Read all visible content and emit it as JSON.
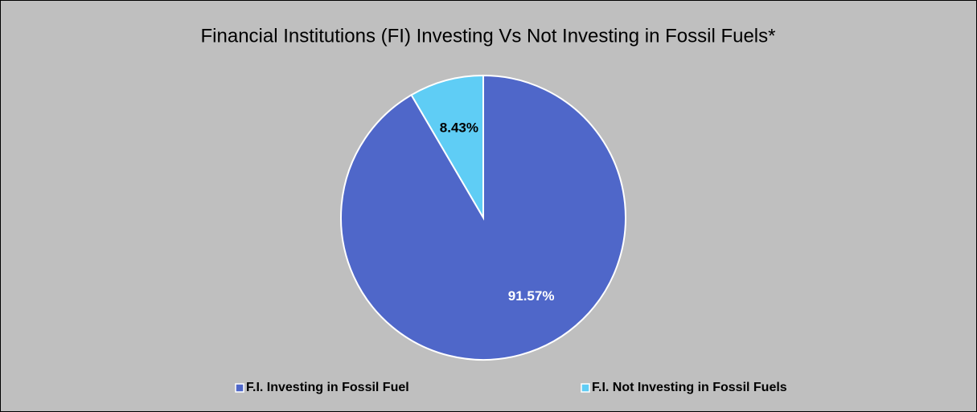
{
  "chart_data": {
    "type": "pie",
    "title": "Financial Institutions (FI) Investing Vs Not Investing in Fossil Fuels*",
    "categories": [
      "F.I. Investing in Fossil Fuel",
      "F.I. Not Investing in Fossil Fuels"
    ],
    "values": [
      91.57,
      8.43
    ],
    "value_labels": [
      "91.57%",
      "8.43%"
    ],
    "colors": [
      "#4f67c9",
      "#5fcdf5"
    ],
    "label_colors": [
      "#ffffff",
      "#000000"
    ],
    "legend": "bottom"
  }
}
